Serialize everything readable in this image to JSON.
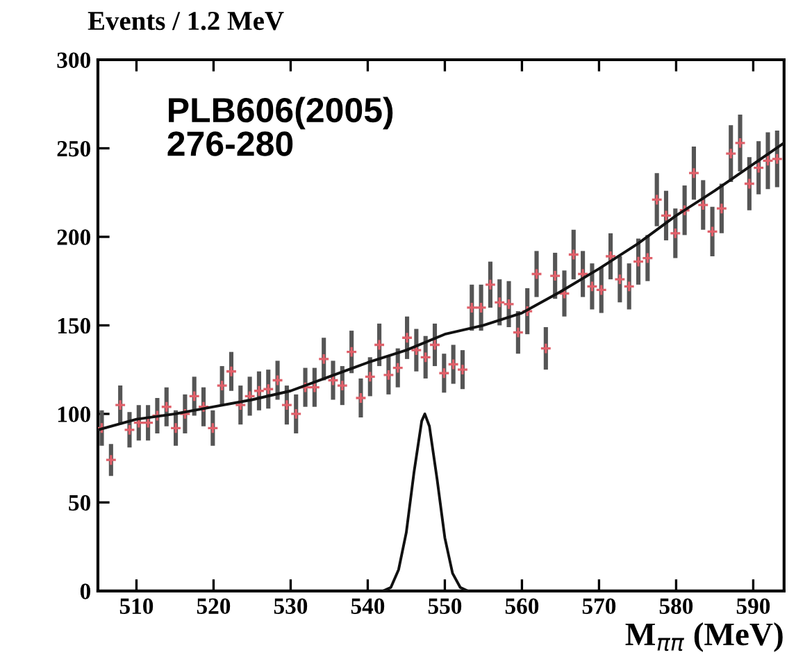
{
  "chart_data": {
    "type": "scatter",
    "ylabel": "Events / 1.2 MeV",
    "xlabel": "M$_{ππ}$ (MeV)",
    "annotations": [
      "PLB606(2005)\n276-280"
    ],
    "xlim": [
      505,
      594
    ],
    "ylim": [
      0,
      300
    ],
    "xticks": [
      510,
      520,
      530,
      540,
      550,
      560,
      570,
      580,
      590
    ],
    "yticks": [
      0,
      50,
      100,
      150,
      200,
      250,
      300
    ],
    "grid": false,
    "legend": false,
    "series": [
      {
        "type": "scatter",
        "color": "#e0606a",
        "marker": "cross",
        "x": [
          505.5,
          506.7,
          507.9,
          509.1,
          510.3,
          511.5,
          512.7,
          513.9,
          515.1,
          516.3,
          517.5,
          518.7,
          519.9,
          521.1,
          522.3,
          523.5,
          524.7,
          525.9,
          527.1,
          528.3,
          529.5,
          530.7,
          531.9,
          533.1,
          534.3,
          535.5,
          536.7,
          537.9,
          539.1,
          540.3,
          541.5,
          542.7,
          543.9,
          545.1,
          546.3,
          547.5,
          548.7,
          549.9,
          551.1,
          552.3,
          553.5,
          554.7,
          555.9,
          557.1,
          558.3,
          559.5,
          560.7,
          561.9,
          563.1,
          564.3,
          565.5,
          566.7,
          567.9,
          569.1,
          570.3,
          571.5,
          572.7,
          573.9,
          575.1,
          576.3,
          577.5,
          578.7,
          579.9,
          581.1,
          582.3,
          583.5,
          584.7,
          585.9,
          587.1,
          588.3,
          589.5,
          590.7,
          591.9,
          593.1
        ],
        "values": [
          92,
          74,
          105,
          91,
          95,
          95,
          99,
          104,
          92,
          100,
          110,
          104,
          92,
          116,
          124,
          105,
          110,
          113,
          114,
          119,
          105,
          100,
          115,
          115,
          131,
          119,
          116,
          135,
          109,
          121,
          139,
          122,
          126,
          143,
          136,
          132,
          139,
          123,
          128,
          125,
          160,
          160,
          173,
          163,
          162,
          146,
          158,
          179,
          137,
          178,
          168,
          190,
          179,
          172,
          170,
          189,
          176,
          172,
          186,
          188,
          221,
          212,
          202,
          215,
          236,
          218,
          203,
          216,
          247,
          253,
          230,
          239,
          243,
          244
        ],
        "errors": [
          10,
          9,
          11,
          10,
          10,
          10,
          10,
          11,
          10,
          11,
          11,
          11,
          10,
          11,
          11,
          11,
          11,
          11,
          11,
          11,
          11,
          11,
          11,
          11,
          12,
          11,
          11,
          12,
          11,
          11,
          12,
          11,
          11,
          12,
          12,
          12,
          12,
          11,
          11,
          11,
          13,
          13,
          13,
          13,
          13,
          12,
          13,
          13,
          12,
          13,
          13,
          14,
          13,
          13,
          13,
          13,
          13,
          13,
          13,
          13,
          15,
          14,
          14,
          14,
          15,
          14,
          14,
          14,
          16,
          16,
          15,
          15,
          16,
          16
        ]
      },
      {
        "type": "line",
        "color": "#111111",
        "marker": "none",
        "x": [
          505,
          510,
          515,
          520,
          525,
          530,
          535,
          540,
          545,
          550,
          555,
          560,
          565,
          570,
          575,
          580,
          585,
          590,
          594
        ],
        "values": [
          91,
          97,
          100,
          104,
          108,
          113,
          121,
          129,
          136,
          145,
          150,
          157,
          169,
          182,
          196,
          212,
          226,
          241,
          253
        ]
      },
      {
        "type": "line",
        "color": "#111111",
        "marker": "none",
        "x": [
          542,
          543,
          544,
          545,
          546,
          547,
          547.4,
          548,
          549,
          550,
          551,
          552,
          553
        ],
        "values": [
          0,
          2,
          12,
          33,
          67,
          96,
          100,
          93,
          63,
          30,
          10,
          2,
          0
        ]
      }
    ]
  }
}
